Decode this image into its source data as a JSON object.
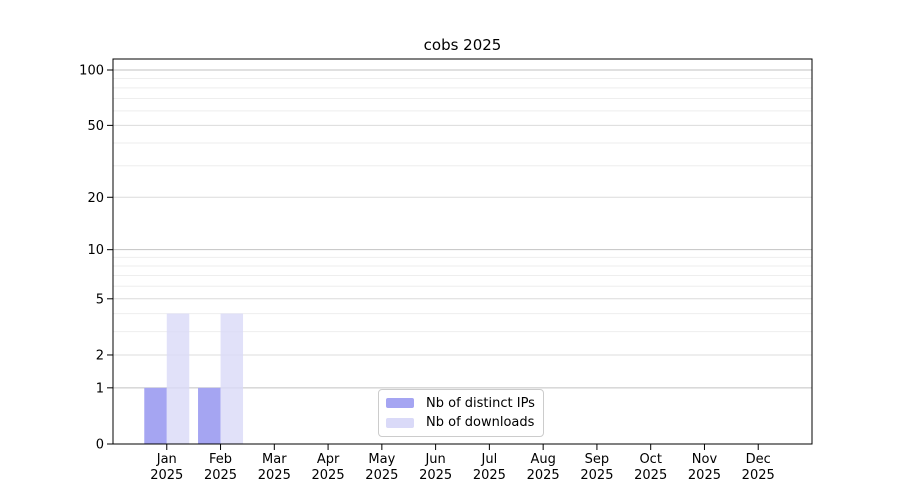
{
  "figure": {
    "background": "#ffffff"
  },
  "chart_data": {
    "type": "bar",
    "title": "cobs 2025",
    "categories": [
      "Jan",
      "Feb",
      "Mar",
      "Apr",
      "May",
      "Jun",
      "Jul",
      "Aug",
      "Sep",
      "Oct",
      "Nov",
      "Dec"
    ],
    "x_year_label": "2025",
    "series": [
      {
        "name": "Nb of distinct IPs",
        "color": "#a5a5f2",
        "values": [
          1,
          1,
          0,
          0,
          0,
          0,
          0,
          0,
          0,
          0,
          0,
          0
        ]
      },
      {
        "name": "Nb of downloads",
        "color": "#dadaf8",
        "values": [
          4,
          4,
          0,
          0,
          0,
          0,
          0,
          0,
          0,
          0,
          0,
          0
        ]
      }
    ],
    "yscale": "log1p",
    "ylim": [
      0,
      115
    ],
    "y_ticks": [
      0,
      1,
      2,
      5,
      10,
      20,
      50,
      100
    ],
    "y_gridlines_major": [
      1,
      10,
      100
    ],
    "y_gridlines_mid": [
      2,
      5,
      20,
      50
    ],
    "y_gridlines_minor": [
      3,
      4,
      6,
      7,
      8,
      9,
      30,
      40,
      60,
      70,
      80,
      90
    ],
    "grid": true,
    "legend_position": "bottom-center",
    "colors": {
      "grid_major": "#c2c2c2",
      "grid_mid": "#dcdcdc",
      "grid_minor": "#eeeeee",
      "axis": "#000000",
      "tick_text": "#000000",
      "background": "#ffffff"
    }
  }
}
